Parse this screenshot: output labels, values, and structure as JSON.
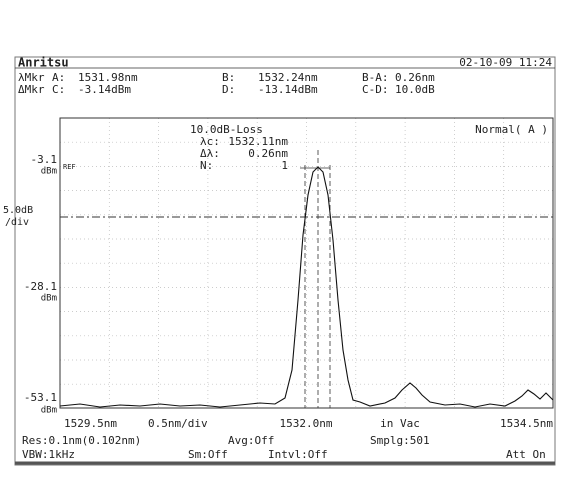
{
  "header": {
    "brand": "Anritsu",
    "datetime": "02-10-09 11:24"
  },
  "markers": [
    [
      "λMkr",
      "A:",
      "1531.98nm",
      "B:",
      "1532.24nm",
      "B-A:",
      "0.26nm"
    ],
    [
      "ΔMkr",
      "C:",
      "-3.14dBm",
      "D:",
      "-13.14dBm",
      "C-D:",
      "10.0dB"
    ]
  ],
  "analysis": {
    "title": "10.0dB-Loss",
    "rows": [
      [
        "λc:",
        "1532.11nm"
      ],
      [
        "Δλ:",
        "0.26nm"
      ],
      [
        "N:",
        "1"
      ]
    ],
    "mode": "Normal( A )"
  },
  "left_labels": {
    "ref_level": "-3.1",
    "ref_unit": "dBm",
    "ref_tag": "REF",
    "scale": "5.0dB",
    "scale_unit": "/div",
    "mid_level": "-28.1",
    "mid_unit": "dBm",
    "bottom_level": "-53.1",
    "bottom_unit": "dBm"
  },
  "bottom_labels": {
    "start": "1529.5nm",
    "span": "0.5nm/div",
    "center": "1532.0nm",
    "medium": "in Vac",
    "stop": "1534.5nm"
  },
  "footer": [
    [
      "Res:0.1nm(0.102nm)",
      "Avg:Off",
      "Smplg:501"
    ],
    [
      "VBW:1kHz",
      "Sm:Off",
      "Intvl:Off",
      "Att On"
    ]
  ]
}
